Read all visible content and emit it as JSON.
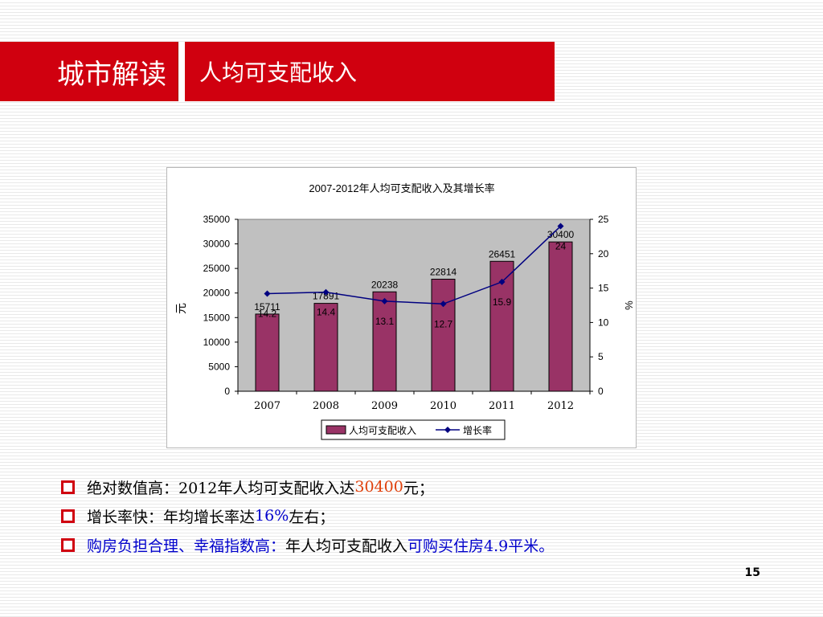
{
  "header": {
    "section": "城市解读",
    "topic": "人均可支配收入",
    "colors": {
      "banner": "#d0000f"
    }
  },
  "chart_data": {
    "type": "bar",
    "title": "2007-2012年人均可支配收入及其增长率",
    "categories": [
      "2007",
      "2008",
      "2009",
      "2010",
      "2011",
      "2012"
    ],
    "series": [
      {
        "name": "人均可支配收入",
        "type": "bar",
        "axis": "left",
        "color": "#993366",
        "values": [
          15711,
          17891,
          20238,
          22814,
          26451,
          30400
        ],
        "labels": [
          "15711",
          "17891",
          "20238",
          "22814",
          "26451",
          "30400"
        ]
      },
      {
        "name": "增长率",
        "type": "line",
        "axis": "right",
        "color": "#000080",
        "values": [
          14.2,
          14.4,
          13.1,
          12.7,
          15.9,
          24
        ],
        "labels": [
          "14.2",
          "14.4",
          "13.1",
          "12.7",
          "15.9",
          "24"
        ]
      }
    ],
    "ylabel": "元",
    "y2label": "%",
    "ylim": [
      0,
      35000
    ],
    "y2lim": [
      0,
      25
    ],
    "yticks": [
      "0",
      "5000",
      "10000",
      "15000",
      "20000",
      "25000",
      "30000",
      "35000"
    ],
    "y2ticks": [
      "0",
      "5",
      "10",
      "15",
      "20",
      "25"
    ],
    "legend": "bottom",
    "plot_background": "#c0c0c0"
  },
  "bullets": [
    {
      "parts": [
        {
          "text": "绝对数值高：2012年人均可支配收入达",
          "color": "black"
        },
        {
          "text": "30400",
          "color": "red"
        },
        {
          "text": "元；",
          "color": "black"
        }
      ]
    },
    {
      "parts": [
        {
          "text": "增长率快：年均增长率达",
          "color": "black"
        },
        {
          "text": "16%",
          "color": "blue"
        },
        {
          "text": "左右；",
          "color": "black"
        }
      ]
    },
    {
      "parts": [
        {
          "text": "购房负担合理、幸福指数高：",
          "color": "blue"
        },
        {
          "text": "年人均可支配收入",
          "color": "black"
        },
        {
          "text": "可购买住房4.9平米。",
          "color": "blue"
        }
      ]
    }
  ],
  "page_number": "15"
}
